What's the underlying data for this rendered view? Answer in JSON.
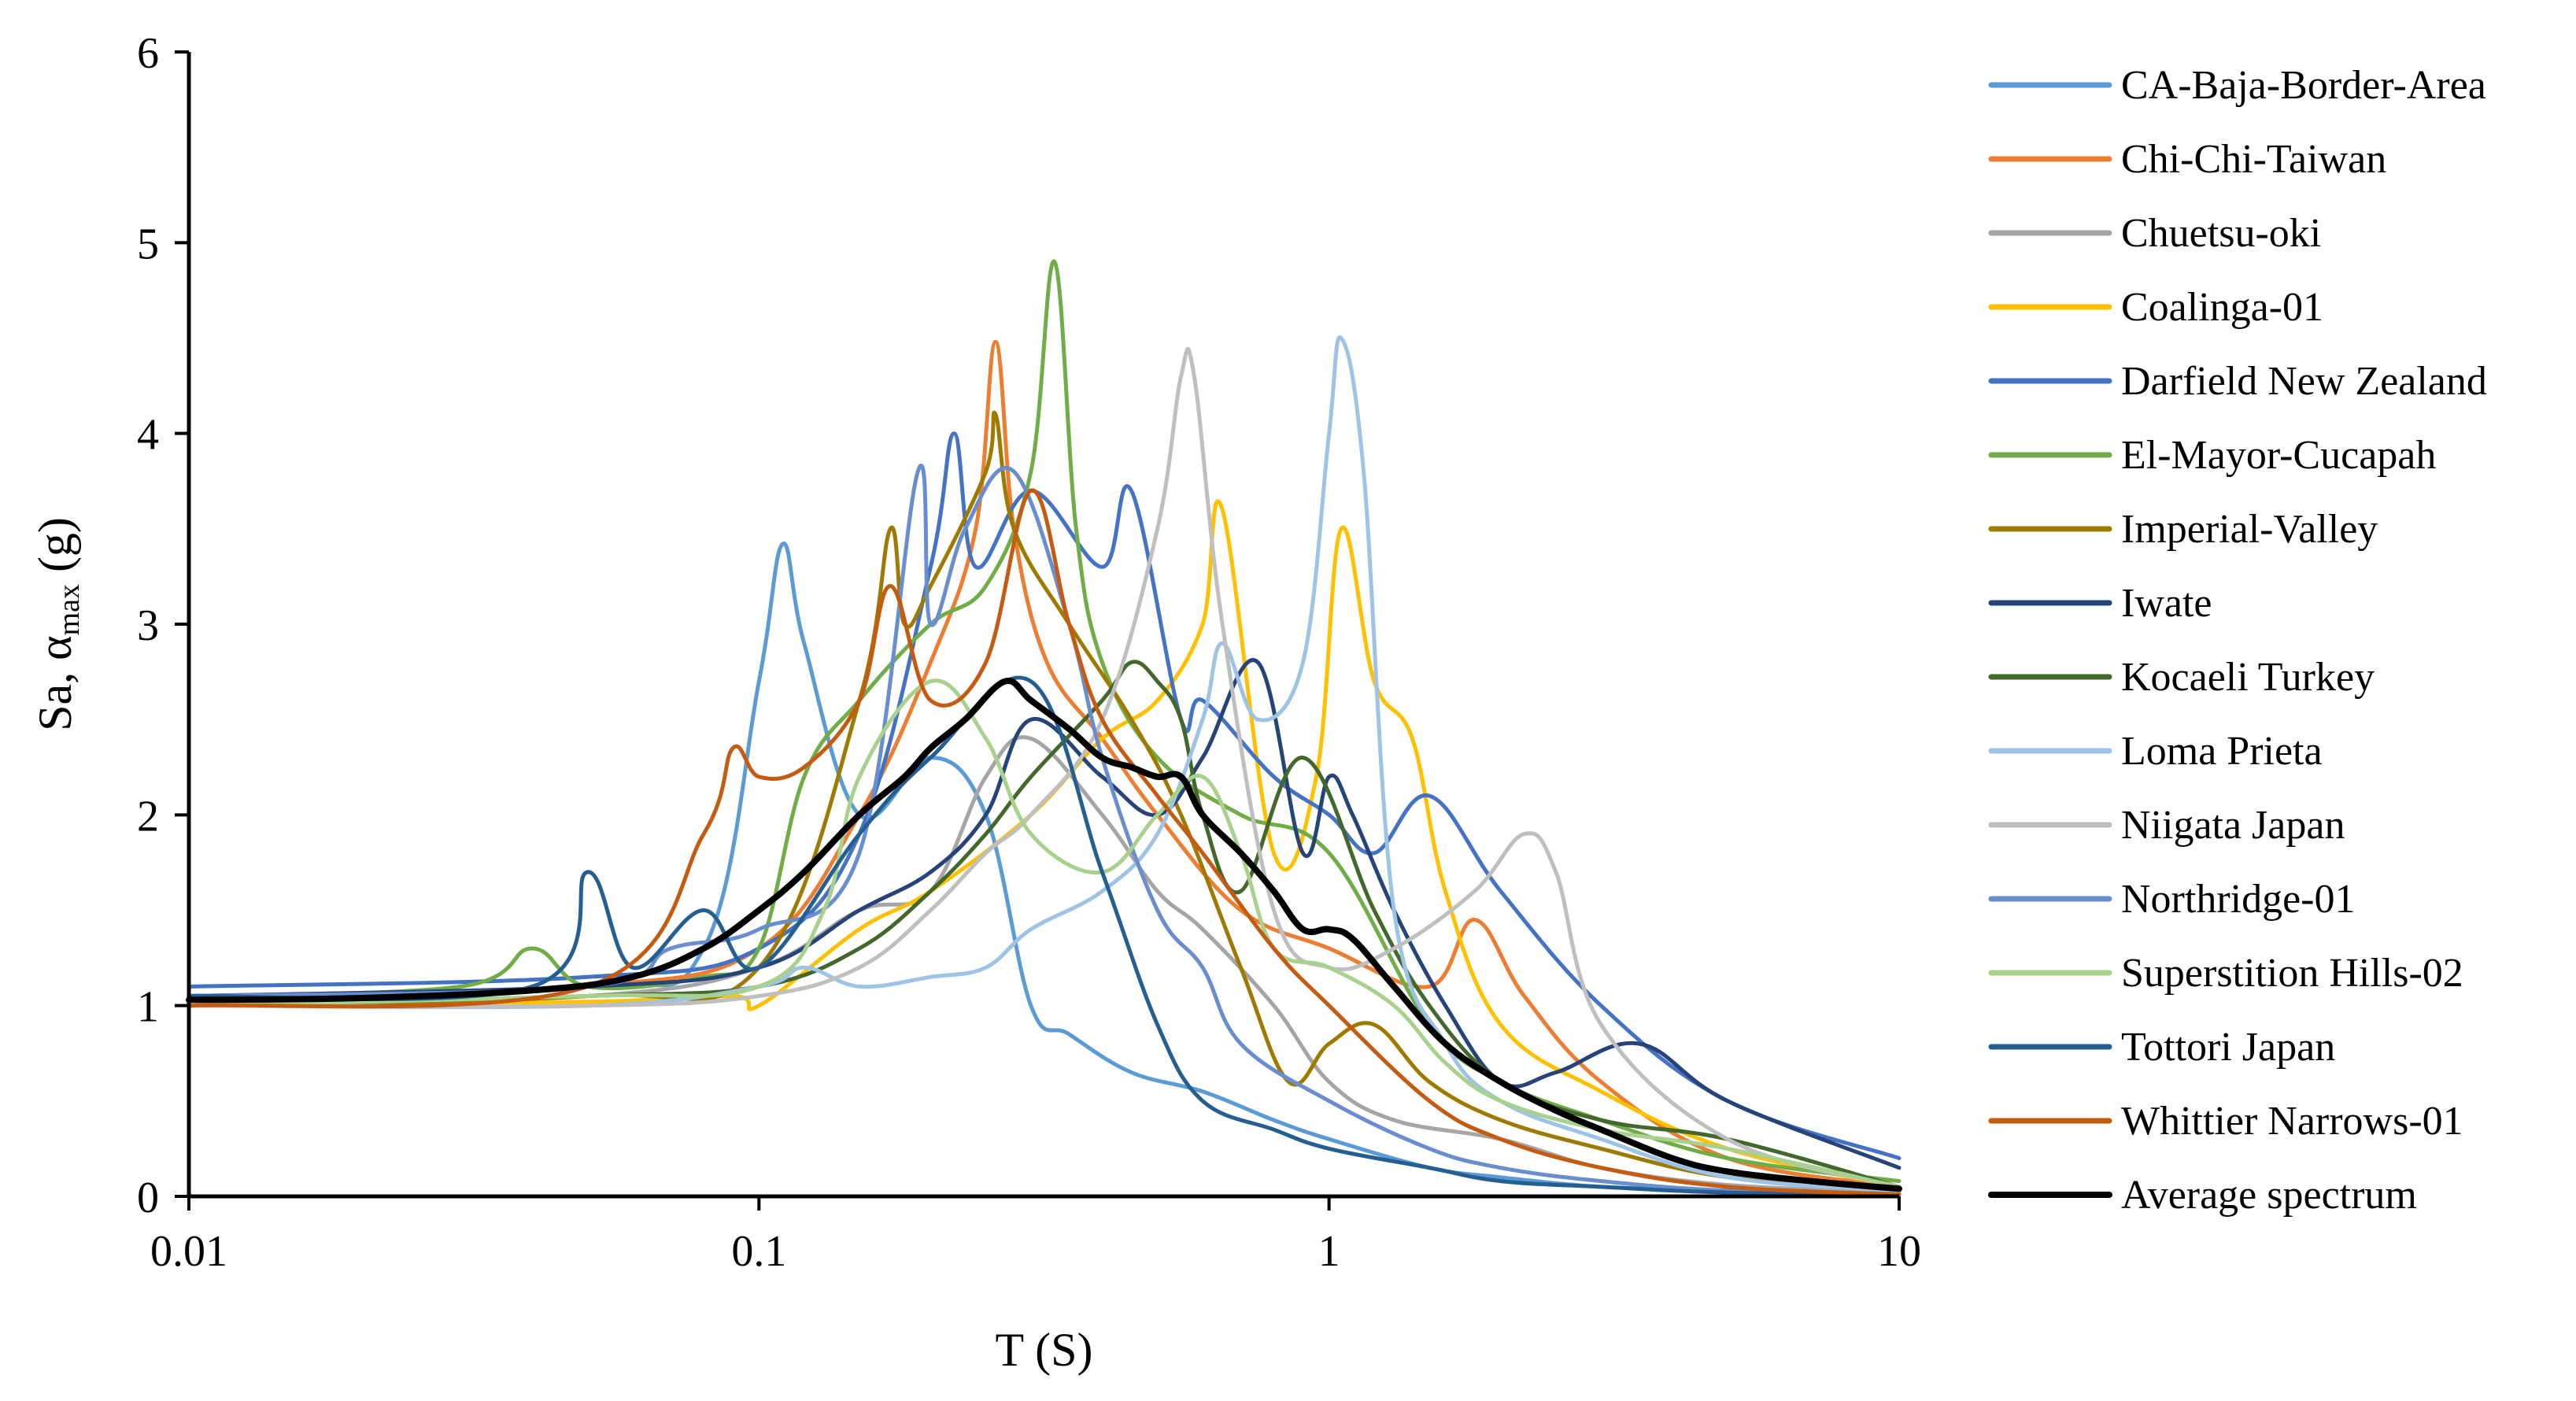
{
  "chart_data": {
    "type": "line",
    "xscale": "log",
    "xlim": [
      0.01,
      10
    ],
    "ylim": [
      0,
      6
    ],
    "xticks": [
      0.01,
      0.1,
      1,
      10
    ],
    "xtick_labels": [
      "0.01",
      "0.1",
      "1",
      "10"
    ],
    "yticks": [
      0,
      1,
      2,
      3,
      4,
      5,
      6
    ],
    "ytick_labels": [
      "0",
      "1",
      "2",
      "3",
      "4",
      "5",
      "6"
    ],
    "xlabel": "T (S)",
    "ylabel": {
      "prefix": "Sa, α",
      "sub": "max",
      "suffix": " (g)"
    },
    "grid": false,
    "legend_position": "right",
    "series": [
      {
        "name": "CA-Baja-Border-Area",
        "color": "#5B9BD5",
        "width": 5,
        "x": [
          0.01,
          0.05,
          0.08,
          0.1,
          0.11,
          0.12,
          0.15,
          0.2,
          0.25,
          0.3,
          0.35,
          0.45,
          0.6,
          0.8,
          1.0,
          1.5,
          2,
          3,
          5,
          10
        ],
        "y": [
          1.05,
          1.1,
          1.3,
          2.7,
          3.42,
          2.9,
          2.0,
          2.3,
          2.0,
          1.0,
          0.85,
          0.65,
          0.55,
          0.4,
          0.3,
          0.15,
          0.1,
          0.05,
          0.03,
          0.01
        ]
      },
      {
        "name": "Chi-Chi-Taiwan",
        "color": "#ED7D31",
        "width": 5,
        "x": [
          0.01,
          0.05,
          0.1,
          0.15,
          0.2,
          0.24,
          0.26,
          0.28,
          0.32,
          0.4,
          0.5,
          0.7,
          1.0,
          1.5,
          1.8,
          2.2,
          3,
          5,
          10
        ],
        "y": [
          1.0,
          1.1,
          1.3,
          2.0,
          2.8,
          3.5,
          4.48,
          3.5,
          2.8,
          2.4,
          2.0,
          1.5,
          1.3,
          1.1,
          1.45,
          1.05,
          0.6,
          0.2,
          0.05
        ]
      },
      {
        "name": "Chuetsu-oki",
        "color": "#A5A5A5",
        "width": 5,
        "x": [
          0.01,
          0.05,
          0.1,
          0.15,
          0.2,
          0.25,
          0.3,
          0.4,
          0.5,
          0.6,
          0.8,
          1.0,
          1.3,
          2,
          3,
          5,
          10
        ],
        "y": [
          1.0,
          1.05,
          1.2,
          1.5,
          1.6,
          2.2,
          2.4,
          2.0,
          1.6,
          1.4,
          1.0,
          0.6,
          0.4,
          0.3,
          0.15,
          0.06,
          0.02
        ]
      },
      {
        "name": "Coalinga-01",
        "color": "#FFC000",
        "width": 5,
        "x": [
          0.01,
          0.05,
          0.09,
          0.1,
          0.15,
          0.2,
          0.3,
          0.4,
          0.5,
          0.6,
          0.65,
          0.8,
          0.95,
          1.05,
          1.2,
          1.4,
          1.6,
          2,
          3,
          5,
          10
        ],
        "y": [
          1.0,
          1.02,
          1.05,
          1.0,
          1.4,
          1.6,
          2.0,
          2.4,
          2.6,
          3.0,
          3.6,
          1.8,
          2.2,
          3.5,
          2.7,
          2.4,
          1.6,
          0.9,
          0.55,
          0.25,
          0.05
        ]
      },
      {
        "name": "Darfield New Zealand",
        "color": "#4472C4",
        "width": 5,
        "x": [
          0.01,
          0.05,
          0.1,
          0.15,
          0.2,
          0.22,
          0.24,
          0.3,
          0.4,
          0.45,
          0.55,
          0.6,
          0.8,
          1.0,
          1.2,
          1.5,
          2,
          3,
          5,
          10
        ],
        "y": [
          1.1,
          1.15,
          1.3,
          1.9,
          3.3,
          4.0,
          3.3,
          3.7,
          3.3,
          3.7,
          2.5,
          2.6,
          2.2,
          2.0,
          1.8,
          2.1,
          1.6,
          1.0,
          0.5,
          0.2
        ]
      },
      {
        "name": "El-Mayor-Cucapah",
        "color": "#70AD47",
        "width": 5,
        "x": [
          0.01,
          0.03,
          0.04,
          0.05,
          0.08,
          0.1,
          0.12,
          0.15,
          0.2,
          0.25,
          0.3,
          0.33,
          0.36,
          0.4,
          0.5,
          0.7,
          1.0,
          1.5,
          2,
          3,
          5,
          10
        ],
        "y": [
          1.05,
          1.1,
          1.3,
          1.1,
          1.15,
          1.3,
          2.2,
          2.6,
          3.0,
          3.2,
          3.8,
          4.9,
          3.5,
          2.8,
          2.3,
          2.0,
          1.8,
          0.9,
          0.6,
          0.4,
          0.2,
          0.08
        ]
      },
      {
        "name": "Imperial-Valley",
        "color": "#9E7B00",
        "width": 5,
        "x": [
          0.01,
          0.05,
          0.1,
          0.15,
          0.17,
          0.18,
          0.2,
          0.25,
          0.26,
          0.28,
          0.35,
          0.45,
          0.55,
          0.7,
          0.85,
          1.0,
          1.2,
          1.5,
          2,
          3,
          5,
          10
        ],
        "y": [
          1.0,
          1.05,
          1.2,
          2.6,
          3.5,
          3.0,
          3.2,
          3.8,
          4.1,
          3.5,
          3.0,
          2.5,
          2.0,
          1.2,
          0.6,
          0.8,
          0.9,
          0.6,
          0.4,
          0.25,
          0.1,
          0.03
        ]
      },
      {
        "name": "Iwate",
        "color": "#264478",
        "width": 5,
        "x": [
          0.01,
          0.05,
          0.1,
          0.15,
          0.2,
          0.25,
          0.3,
          0.4,
          0.5,
          0.6,
          0.75,
          0.9,
          1.0,
          1.1,
          1.3,
          1.6,
          2,
          2.5,
          3.5,
          5,
          10
        ],
        "y": [
          1.05,
          1.1,
          1.2,
          1.5,
          1.7,
          2.0,
          2.5,
          2.2,
          2.0,
          2.3,
          2.8,
          1.8,
          2.2,
          2.0,
          1.5,
          1.0,
          0.6,
          0.65,
          0.8,
          0.5,
          0.15
        ]
      },
      {
        "name": "Kocaeli Turkey",
        "color": "#43682B",
        "width": 5,
        "x": [
          0.01,
          0.05,
          0.1,
          0.15,
          0.2,
          0.25,
          0.3,
          0.4,
          0.45,
          0.5,
          0.55,
          0.6,
          0.7,
          0.9,
          1.2,
          1.5,
          2,
          3,
          5,
          10
        ],
        "y": [
          1.0,
          1.05,
          1.1,
          1.3,
          1.6,
          1.9,
          2.2,
          2.6,
          2.8,
          2.7,
          2.5,
          2.0,
          1.6,
          2.3,
          1.5,
          1.0,
          0.6,
          0.4,
          0.3,
          0.05
        ]
      },
      {
        "name": "Loma Prieta",
        "color": "#9DC3E6",
        "width": 5,
        "x": [
          0.01,
          0.05,
          0.1,
          0.12,
          0.15,
          0.2,
          0.25,
          0.3,
          0.4,
          0.5,
          0.6,
          0.65,
          0.75,
          0.9,
          1.0,
          1.05,
          1.15,
          1.3,
          1.6,
          2,
          3,
          5,
          10
        ],
        "y": [
          1.0,
          1.0,
          1.1,
          1.2,
          1.1,
          1.15,
          1.2,
          1.4,
          1.6,
          1.9,
          2.5,
          2.9,
          2.5,
          2.8,
          4.0,
          4.5,
          3.8,
          1.5,
          0.8,
          0.5,
          0.3,
          0.1,
          0.03
        ]
      },
      {
        "name": "Niigata Japan",
        "color": "#BFBFBF",
        "width": 5,
        "x": [
          0.01,
          0.05,
          0.1,
          0.15,
          0.2,
          0.25,
          0.3,
          0.4,
          0.5,
          0.55,
          0.58,
          0.65,
          0.8,
          1.0,
          1.3,
          1.8,
          2.2,
          2.5,
          3,
          5,
          10
        ],
        "y": [
          1.0,
          1.0,
          1.05,
          1.2,
          1.5,
          1.8,
          2.0,
          2.5,
          3.5,
          4.3,
          4.3,
          3.0,
          1.5,
          1.2,
          1.3,
          1.6,
          1.9,
          1.7,
          0.9,
          0.3,
          0.05
        ]
      },
      {
        "name": "Northridge-01",
        "color": "#698ED0",
        "width": 5,
        "x": [
          0.01,
          0.05,
          0.07,
          0.1,
          0.15,
          0.19,
          0.2,
          0.23,
          0.28,
          0.35,
          0.4,
          0.5,
          0.6,
          0.7,
          1.0,
          1.5,
          2,
          3,
          5,
          10
        ],
        "y": [
          1.05,
          1.1,
          1.3,
          1.4,
          1.8,
          3.8,
          3.0,
          3.5,
          3.8,
          3.0,
          2.3,
          1.5,
          1.2,
          0.8,
          0.5,
          0.25,
          0.15,
          0.08,
          0.03,
          0.01
        ]
      },
      {
        "name": "Superstition Hills-02",
        "color": "#A9D18E",
        "width": 5,
        "x": [
          0.01,
          0.05,
          0.1,
          0.13,
          0.15,
          0.2,
          0.25,
          0.3,
          0.4,
          0.5,
          0.6,
          0.7,
          0.8,
          1.0,
          1.3,
          1.6,
          2,
          3,
          5,
          10
        ],
        "y": [
          1.0,
          1.05,
          1.1,
          1.5,
          2.2,
          2.7,
          2.4,
          1.9,
          1.7,
          2.0,
          2.2,
          1.8,
          1.3,
          1.2,
          1.0,
          0.7,
          0.5,
          0.35,
          0.25,
          0.05
        ]
      },
      {
        "name": "Tottori Japan",
        "color": "#255E91",
        "width": 5,
        "x": [
          0.01,
          0.04,
          0.05,
          0.06,
          0.08,
          0.1,
          0.15,
          0.2,
          0.3,
          0.4,
          0.5,
          0.6,
          0.8,
          1.0,
          1.5,
          2,
          3,
          5,
          10
        ],
        "y": [
          1.05,
          1.1,
          1.7,
          1.2,
          1.5,
          1.2,
          1.9,
          2.3,
          2.7,
          1.7,
          0.9,
          0.5,
          0.35,
          0.25,
          0.15,
          0.08,
          0.05,
          0.02,
          0.01
        ]
      },
      {
        "name": "Whittier Narrows-01",
        "color": "#C55A11",
        "width": 5,
        "x": [
          0.01,
          0.05,
          0.08,
          0.09,
          0.1,
          0.12,
          0.15,
          0.17,
          0.2,
          0.25,
          0.3,
          0.35,
          0.4,
          0.5,
          0.6,
          0.8,
          1.0,
          1.5,
          2,
          3,
          5,
          10
        ],
        "y": [
          1.0,
          1.1,
          1.9,
          2.35,
          2.2,
          2.25,
          2.6,
          3.2,
          2.6,
          2.8,
          3.7,
          3.0,
          2.5,
          2.1,
          1.8,
          1.3,
          1.0,
          0.5,
          0.3,
          0.15,
          0.05,
          0.01
        ]
      },
      {
        "name": "Average spectrum",
        "color": "#000000",
        "width": 8,
        "x": [
          0.01,
          0.02,
          0.04,
          0.06,
          0.08,
          0.1,
          0.12,
          0.15,
          0.18,
          0.2,
          0.23,
          0.27,
          0.3,
          0.35,
          0.4,
          0.45,
          0.5,
          0.55,
          0.6,
          0.7,
          0.8,
          0.9,
          1.0,
          1.1,
          1.3,
          1.6,
          2,
          2.5,
          3,
          4,
          5,
          7,
          10
        ],
        "y": [
          1.03,
          1.04,
          1.08,
          1.15,
          1.3,
          1.5,
          1.7,
          2.0,
          2.2,
          2.35,
          2.5,
          2.7,
          2.6,
          2.45,
          2.3,
          2.25,
          2.2,
          2.2,
          2.0,
          1.8,
          1.6,
          1.4,
          1.4,
          1.35,
          1.1,
          0.8,
          0.6,
          0.45,
          0.35,
          0.2,
          0.13,
          0.08,
          0.04
        ]
      }
    ]
  }
}
